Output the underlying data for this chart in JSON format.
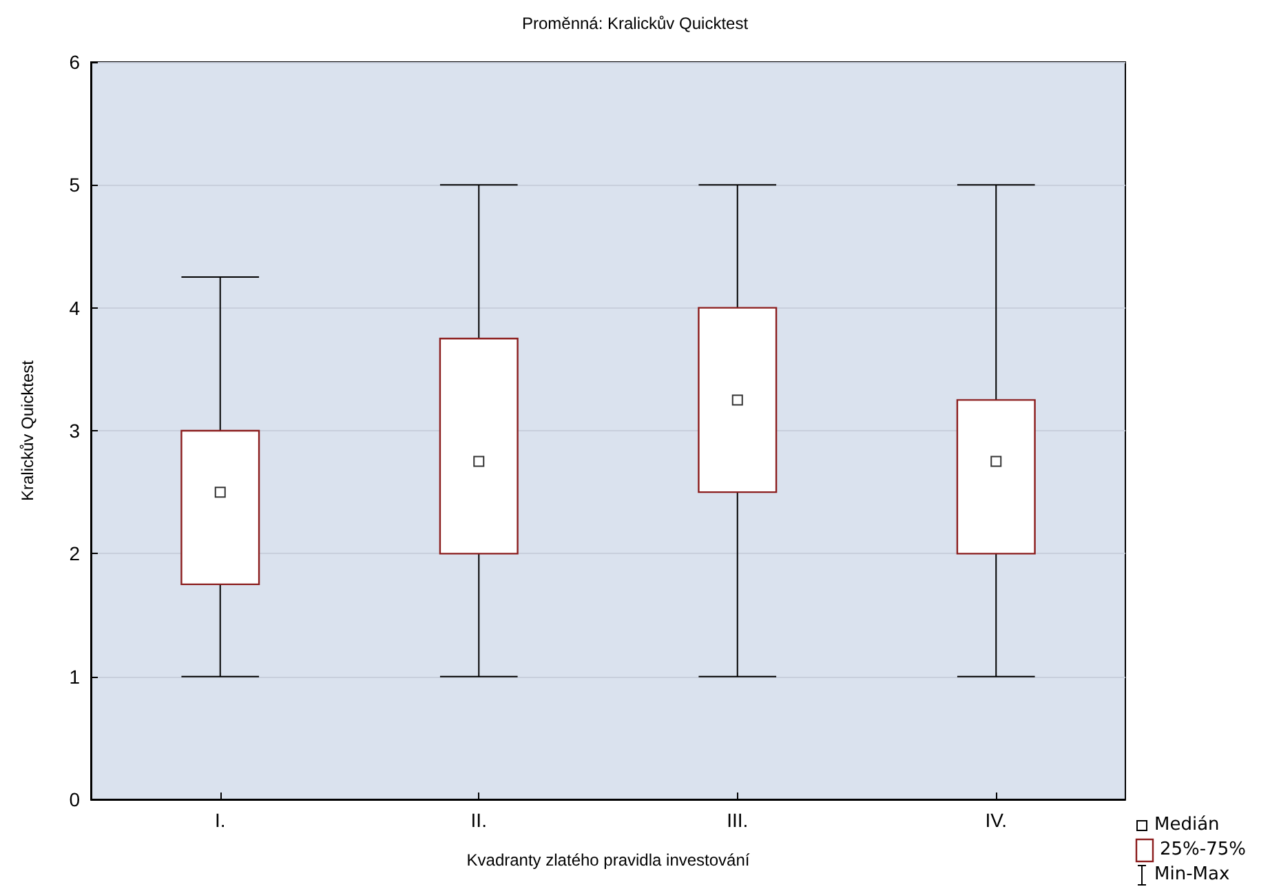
{
  "chart_data": {
    "type": "box",
    "title": "Proměnná: Kralickův Quicktest",
    "xlabel": "Kvadranty zlatého pravidla investování",
    "ylabel": "Kralickův Quicktest",
    "categories": [
      "I.",
      "II.",
      "III.",
      "IV."
    ],
    "boxes": [
      {
        "low": 1,
        "q1": 1.75,
        "median": 2.5,
        "q3": 3,
        "high": 4.25
      },
      {
        "low": 1,
        "q1": 2,
        "median": 2.75,
        "q3": 3.75,
        "high": 5
      },
      {
        "low": 1,
        "q1": 2.5,
        "median": 3.25,
        "q3": 4,
        "high": 5
      },
      {
        "low": 1,
        "q1": 2,
        "median": 2.75,
        "q3": 3.25,
        "high": 5
      }
    ],
    "color": "#8b1c1c",
    "ylim": [
      0,
      6
    ],
    "yticks": [
      0,
      1,
      2,
      3,
      4,
      5,
      6
    ],
    "grid": "y",
    "marker": "square",
    "annotations": [
      "Medián",
      "25%-75%",
      "Min-Max"
    ]
  }
}
